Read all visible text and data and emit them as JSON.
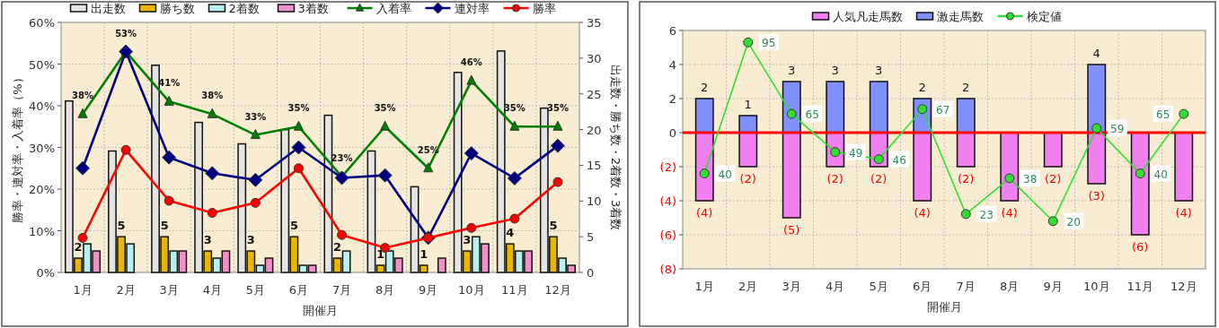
{
  "chart_data": [
    {
      "type": "bar",
      "categories": [
        "1月",
        "2月",
        "3月",
        "4月",
        "5月",
        "6月",
        "7月",
        "8月",
        "9月",
        "10月",
        "11月",
        "12月"
      ],
      "xlabel": "開催月",
      "ylabel": "勝率・連対率・入着率（%）",
      "y2label": "出走数・勝ち数・2着数・3着数",
      "ylim": [
        0,
        60
      ],
      "yticks": [
        {
          "value": 0,
          "label": "0%"
        },
        {
          "value": 10,
          "label": "10%"
        },
        {
          "value": 20,
          "label": "20%"
        },
        {
          "value": 30,
          "label": "30%"
        },
        {
          "value": 40,
          "label": "40%"
        },
        {
          "value": 50,
          "label": "50%"
        },
        {
          "value": 60,
          "label": "60%"
        }
      ],
      "y2lim": [
        0,
        35
      ],
      "y2ticks": [
        0,
        5,
        10,
        15,
        20,
        25,
        30,
        35
      ],
      "grid": true,
      "legend": "top",
      "series": [
        {
          "name": "出走数",
          "axis": "y2",
          "color": "#e4e4e4",
          "values": [
            24,
            17,
            29,
            21,
            18,
            20,
            22,
            17,
            12,
            28,
            31,
            23
          ]
        },
        {
          "name": "勝ち数",
          "axis": "y2",
          "color": "#e8b800",
          "values": [
            2,
            5,
            5,
            3,
            3,
            5,
            2,
            1,
            1,
            3,
            4,
            5
          ],
          "value_labels": [
            "2",
            "5",
            "5",
            "3",
            "3",
            "5",
            "2",
            "1",
            "1",
            "3",
            "4",
            "5"
          ]
        },
        {
          "name": "2着数",
          "axis": "y2",
          "color": "#b8f0f0",
          "values": [
            4,
            4,
            3,
            2,
            1,
            1,
            3,
            3,
            0,
            5,
            3,
            2
          ]
        },
        {
          "name": "3着数",
          "axis": "y2",
          "color": "#f090c8",
          "values": [
            3,
            0,
            3,
            3,
            2,
            1,
            0,
            2,
            2,
            4,
            3,
            1
          ]
        },
        {
          "name": "入着率",
          "type": "line",
          "color": "#008000",
          "marker": "triangle",
          "values": [
            38,
            53,
            41,
            38,
            33,
            35,
            23,
            35,
            25,
            46,
            35,
            35
          ],
          "value_labels": [
            "38%",
            "53%",
            "41%",
            "38%",
            "33%",
            "35%",
            "23%",
            "35%",
            "25%",
            "46%",
            "35%",
            "35%"
          ]
        },
        {
          "name": "連対率",
          "type": "line",
          "color": "#000080",
          "marker": "diamond",
          "values": [
            25,
            53,
            27.6,
            23.8,
            22.2,
            30,
            22.7,
            23.3,
            8.3,
            28.6,
            22.6,
            30.4
          ]
        },
        {
          "name": "勝率",
          "type": "line",
          "color": "#ff0000",
          "marker": "circle",
          "values": [
            8.3,
            29.4,
            17.2,
            14.3,
            16.7,
            25,
            9,
            5.9,
            8.3,
            10.7,
            12.9,
            21.7
          ]
        }
      ]
    },
    {
      "type": "bar",
      "categories": [
        "1月",
        "2月",
        "3月",
        "4月",
        "5月",
        "6月",
        "7月",
        "8月",
        "9月",
        "10月",
        "11月",
        "12月"
      ],
      "xlabel": "開催月",
      "ylim": [
        -8,
        6
      ],
      "yticks": [
        {
          "value": -8,
          "label": "(8)"
        },
        {
          "value": -6,
          "label": "(6)"
        },
        {
          "value": -4,
          "label": "(4)"
        },
        {
          "value": -2,
          "label": "(2)"
        },
        0,
        2,
        4,
        6
      ],
      "y2lim": [
        0,
        100
      ],
      "stacked": true,
      "grid": true,
      "legend": "top",
      "ref_lines": [
        {
          "axis": "y",
          "value": 0,
          "color": "#ff0000"
        }
      ],
      "series": [
        {
          "name": "人気凡走馬数",
          "color": "#f080f0",
          "values": [
            -4,
            -2,
            -5,
            -2,
            -2,
            -4,
            -2,
            -4,
            -2,
            -3,
            -6,
            -4
          ],
          "value_labels": [
            "(4)",
            "(2)",
            "(5)",
            "(2)",
            "(2)",
            "(4)",
            "(2)",
            "(4)",
            "(2)",
            "(3)",
            "(6)",
            "(4)"
          ]
        },
        {
          "name": "激走馬数",
          "color": "#8090ff",
          "values": [
            2,
            1,
            3,
            3,
            3,
            2,
            2,
            0,
            0,
            4,
            0,
            0
          ],
          "value_labels": [
            "2",
            "1",
            "3",
            "3",
            "3",
            "2",
            "2",
            null,
            null,
            "4",
            null,
            null
          ]
        },
        {
          "name": "検定値",
          "type": "line",
          "axis": "y2",
          "color": "#33dd33",
          "marker": "circle",
          "values": [
            40,
            95,
            65,
            49,
            46,
            67,
            23,
            38,
            20,
            59,
            40,
            65
          ],
          "value_labels": [
            "40",
            "95",
            "65",
            "49",
            "46",
            "67",
            "23",
            "38",
            "20",
            "59",
            "40",
            "65"
          ]
        }
      ]
    }
  ]
}
